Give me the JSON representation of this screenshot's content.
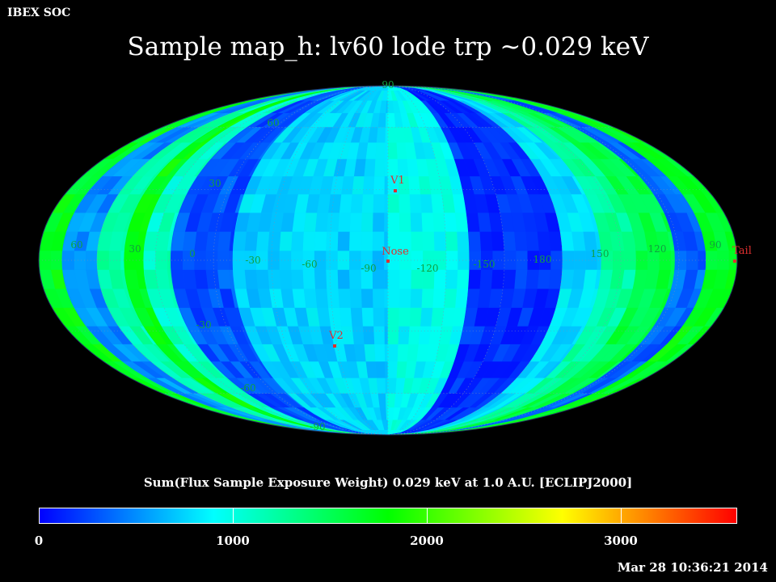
{
  "header": {
    "org": "IBEX SOC",
    "title": "Sample map_h: lv60 lode trp ~0.029 keV",
    "timestamp": "Mar 28 10:36:21 2014"
  },
  "map": {
    "projection": "mollweide",
    "colorscale": [
      "#0000ff",
      "#00ffff",
      "#00ff00",
      "#ffff00",
      "#ff0000"
    ],
    "latitude_labels": [
      "90",
      "60",
      "30",
      "-30",
      "-60",
      "-90"
    ],
    "longitude_labels": [
      "60",
      "30",
      "0",
      "-30",
      "-60",
      "-90",
      "-120",
      "-150",
      "180",
      "150",
      "120",
      "90"
    ],
    "reference_points": [
      {
        "label": "V1"
      },
      {
        "label": "Nose"
      },
      {
        "label": "V2"
      },
      {
        "label": "Tail"
      }
    ],
    "bands": [
      {
        "lon_from": -180,
        "lon_to": -168,
        "value": 1700
      },
      {
        "lon_from": -168,
        "lon_to": -150,
        "value": 500
      },
      {
        "lon_from": -150,
        "lon_to": -136,
        "value": 1200
      },
      {
        "lon_from": -136,
        "lon_to": -126,
        "value": 1750
      },
      {
        "lon_from": -126,
        "lon_to": -112,
        "value": 1100
      },
      {
        "lon_from": -112,
        "lon_to": -80,
        "value": 300
      },
      {
        "lon_from": -80,
        "lon_to": 0,
        "value": 750
      },
      {
        "lon_from": 0,
        "lon_to": 42,
        "value": 950
      },
      {
        "lon_from": 42,
        "lon_to": 90,
        "value": 150
      },
      {
        "lon_from": 90,
        "lon_to": 110,
        "value": 800
      },
      {
        "lon_from": 110,
        "lon_to": 128,
        "value": 1250
      },
      {
        "lon_from": 128,
        "lon_to": 148,
        "value": 1550
      },
      {
        "lon_from": 148,
        "lon_to": 164,
        "value": 350
      },
      {
        "lon_from": 164,
        "lon_to": 180,
        "value": 1700
      }
    ]
  },
  "colorbar": {
    "title": "Sum(Flux Sample Exposure Weight)  0.029 keV at 1.0 A.U. [ECLIPJ2000]",
    "min": 0,
    "max": 3600,
    "tick_labels": [
      "0",
      "1000",
      "2000",
      "3000"
    ],
    "tick_values": [
      0,
      1000,
      2000,
      3000
    ]
  }
}
